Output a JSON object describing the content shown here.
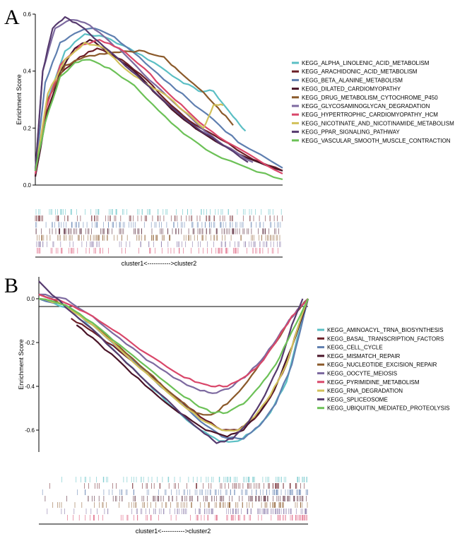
{
  "figure": {
    "panel_a_letter": "A",
    "panel_b_letter": "B"
  },
  "chart_data": [
    {
      "type": "line",
      "panel": "A",
      "ylabel": "Enrichment Score",
      "xlabel": "cluster1<----------->cluster2",
      "ylim": [
        0.0,
        0.6
      ],
      "yticks": [
        "0.0",
        "0.2",
        "0.4",
        "0.6"
      ],
      "xlim": [
        0,
        100
      ],
      "legend_position": "right",
      "series": [
        {
          "name": "KEGG_ALPHA_LINOLENIC_ACID_METABOLISM",
          "color": "#5bbfc4",
          "x": [
            0,
            5,
            12,
            20,
            28,
            38,
            48,
            58,
            66,
            72,
            80,
            85
          ],
          "y": [
            0.05,
            0.3,
            0.47,
            0.53,
            0.52,
            0.48,
            0.43,
            0.37,
            0.33,
            0.33,
            0.24,
            0.19
          ]
        },
        {
          "name": "KEGG_ARACHIDONIC_ACID_METABOLISM",
          "color": "#6b1f27",
          "x": [
            0,
            4,
            10,
            18,
            25,
            35,
            45,
            55,
            65,
            75,
            88,
            100
          ],
          "y": [
            0.03,
            0.24,
            0.39,
            0.45,
            0.48,
            0.44,
            0.37,
            0.28,
            0.21,
            0.16,
            0.09,
            0.05
          ]
        },
        {
          "name": "KEGG_BETA_ALANINE_METABOLISM",
          "color": "#5f7fb0",
          "x": [
            0,
            4,
            10,
            18,
            24,
            32,
            42,
            52,
            62,
            72,
            82,
            100
          ],
          "y": [
            0.05,
            0.36,
            0.5,
            0.54,
            0.55,
            0.52,
            0.45,
            0.37,
            0.3,
            0.23,
            0.15,
            0.06
          ]
        },
        {
          "name": "KEGG_DILATED_CARDIOMYOPATHY",
          "color": "#4a1428",
          "x": [
            0,
            4,
            10,
            16,
            22,
            30,
            40,
            50,
            60,
            70,
            82,
            100
          ],
          "y": [
            0.03,
            0.22,
            0.4,
            0.48,
            0.51,
            0.47,
            0.4,
            0.31,
            0.23,
            0.17,
            0.11,
            0.05
          ]
        },
        {
          "name": "KEGG_DRUG_METABOLISM_CYTOCHROME_P450",
          "color": "#8b5a2b",
          "x": [
            0,
            5,
            12,
            20,
            28,
            36,
            44,
            52,
            58,
            66,
            74,
            80
          ],
          "y": [
            0.05,
            0.3,
            0.42,
            0.45,
            0.46,
            0.47,
            0.47,
            0.45,
            0.4,
            0.34,
            0.27,
            0.21
          ]
        },
        {
          "name": "KEGG_GLYCOSAMINOGLYCAN_DEGRADATION",
          "color": "#7d6aa0",
          "x": [
            0,
            3,
            8,
            14,
            20,
            28,
            36,
            46,
            56,
            66,
            76,
            88
          ],
          "y": [
            0.05,
            0.4,
            0.55,
            0.58,
            0.57,
            0.52,
            0.46,
            0.37,
            0.29,
            0.21,
            0.14,
            0.08
          ]
        },
        {
          "name": "KEGG_HYPERTROPHIC_CARDIOMYOPATHY_HCM",
          "color": "#d9476a",
          "x": [
            0,
            4,
            10,
            18,
            26,
            34,
            44,
            54,
            64,
            74,
            86,
            100
          ],
          "y": [
            0.04,
            0.26,
            0.42,
            0.49,
            0.51,
            0.48,
            0.41,
            0.32,
            0.24,
            0.17,
            0.11,
            0.04
          ]
        },
        {
          "name": "KEGG_NICOTINATE_AND_NICOTINAMIDE_METABOLISM",
          "color": "#d2c15a",
          "x": [
            0,
            5,
            12,
            20,
            28,
            36,
            44,
            52,
            60,
            68,
            72,
            76
          ],
          "y": [
            0.05,
            0.32,
            0.44,
            0.5,
            0.48,
            0.41,
            0.36,
            0.32,
            0.26,
            0.2,
            0.28,
            0.28
          ]
        },
        {
          "name": "KEGG_PPAR_SIGNALING_PATHWAY",
          "color": "#563a6e",
          "x": [
            0,
            3,
            7,
            12,
            18,
            26,
            34,
            44,
            54,
            64,
            74,
            86
          ],
          "y": [
            0.05,
            0.4,
            0.55,
            0.59,
            0.56,
            0.5,
            0.44,
            0.36,
            0.28,
            0.21,
            0.15,
            0.08
          ]
        },
        {
          "name": "KEGG_VASCULAR_SMOOTH_MUSCLE_CONTRACTION",
          "color": "#6cc157",
          "x": [
            0,
            4,
            10,
            16,
            22,
            30,
            40,
            50,
            60,
            72,
            86,
            100
          ],
          "y": [
            0.05,
            0.22,
            0.38,
            0.43,
            0.44,
            0.41,
            0.35,
            0.26,
            0.18,
            0.11,
            0.06,
            0.02
          ]
        }
      ]
    },
    {
      "type": "line",
      "panel": "B",
      "ylabel": "Enrichment Score",
      "xlabel": "cluster1<----------->cluster2",
      "ylim": [
        -0.7,
        0.1
      ],
      "yticks": [
        "-0.6",
        "-0.4",
        "-0.2",
        "0.0"
      ],
      "xlim": [
        0,
        100
      ],
      "legend_position": "right",
      "series": [
        {
          "name": "KEGG_AMINOACYL_TRNA_BIOSYNTHESIS",
          "color": "#5bbfc4",
          "x": [
            0,
            10,
            20,
            30,
            40,
            50,
            60,
            67,
            74,
            80,
            86,
            92,
            96,
            100
          ],
          "y": [
            0.0,
            -0.04,
            -0.14,
            -0.26,
            -0.38,
            -0.5,
            -0.6,
            -0.65,
            -0.65,
            -0.6,
            -0.52,
            -0.38,
            -0.18,
            0.0
          ]
        },
        {
          "name": "KEGG_BASAL_TRANSCRIPTION_FACTORS",
          "color": "#6b1f27",
          "x": [
            12,
            20,
            30,
            40,
            50,
            60,
            68,
            74,
            80,
            86,
            92,
            96,
            100
          ],
          "y": [
            -0.09,
            -0.15,
            -0.24,
            -0.34,
            -0.44,
            -0.54,
            -0.6,
            -0.6,
            -0.55,
            -0.45,
            -0.3,
            -0.14,
            0.0
          ]
        },
        {
          "name": "KEGG_CELL_CYCLE",
          "color": "#5f7fb0",
          "x": [
            0,
            10,
            20,
            30,
            40,
            50,
            60,
            68,
            76,
            82,
            88,
            94,
            100
          ],
          "y": [
            0.0,
            -0.03,
            -0.12,
            -0.23,
            -0.34,
            -0.45,
            -0.56,
            -0.63,
            -0.64,
            -0.58,
            -0.48,
            -0.3,
            0.0
          ]
        },
        {
          "name": "KEGG_MISMATCH_REPAIR",
          "color": "#4a1428",
          "x": [
            14,
            22,
            32,
            42,
            52,
            62,
            70,
            76,
            82,
            88,
            94,
            100
          ],
          "y": [
            -0.12,
            -0.2,
            -0.31,
            -0.42,
            -0.52,
            -0.6,
            -0.63,
            -0.6,
            -0.52,
            -0.4,
            -0.22,
            0.0
          ]
        },
        {
          "name": "KEGG_NUCLEOTIDE_EXCISION_REPAIR",
          "color": "#8b5a2b",
          "x": [
            0,
            10,
            20,
            30,
            40,
            50,
            58,
            64,
            70,
            76,
            82,
            88,
            94,
            100
          ],
          "y": [
            0.02,
            -0.03,
            -0.12,
            -0.22,
            -0.33,
            -0.44,
            -0.52,
            -0.53,
            -0.48,
            -0.4,
            -0.3,
            -0.2,
            -0.08,
            0.0
          ]
        },
        {
          "name": "KEGG_OOCYTE_MEIOSIS",
          "color": "#7d6aa0",
          "x": [
            0,
            10,
            20,
            30,
            40,
            50,
            60,
            66,
            72,
            78,
            84,
            90,
            96,
            100
          ],
          "y": [
            0.02,
            0.0,
            -0.08,
            -0.18,
            -0.28,
            -0.36,
            -0.42,
            -0.43,
            -0.4,
            -0.34,
            -0.26,
            -0.15,
            -0.05,
            0.0
          ]
        },
        {
          "name": "KEGG_PYRIMIDINE_METABOLISM",
          "color": "#d9476a",
          "x": [
            0,
            10,
            20,
            30,
            40,
            50,
            58,
            64,
            70,
            76,
            82,
            88,
            94,
            100
          ],
          "y": [
            0.02,
            -0.02,
            -0.08,
            -0.16,
            -0.25,
            -0.33,
            -0.38,
            -0.4,
            -0.4,
            -0.36,
            -0.3,
            -0.2,
            -0.08,
            0.0
          ]
        },
        {
          "name": "KEGG_RNA_DEGRADATION",
          "color": "#d2c15a",
          "x": [
            0,
            10,
            20,
            30,
            40,
            50,
            60,
            68,
            74,
            80,
            86,
            92,
            96,
            100
          ],
          "y": [
            0.0,
            -0.03,
            -0.12,
            -0.23,
            -0.34,
            -0.45,
            -0.55,
            -0.6,
            -0.6,
            -0.54,
            -0.44,
            -0.3,
            -0.14,
            0.0
          ]
        },
        {
          "name": "KEGG_SPLICEOSOME",
          "color": "#563a6e",
          "x": [
            0,
            10,
            20,
            30,
            40,
            50,
            60,
            66,
            72,
            78,
            84,
            90,
            94,
            98
          ],
          "y": [
            0.08,
            -0.04,
            -0.14,
            -0.26,
            -0.38,
            -0.49,
            -0.6,
            -0.66,
            -0.64,
            -0.56,
            -0.44,
            -0.28,
            -0.12,
            0.0
          ]
        },
        {
          "name": "KEGG_UBIQUITIN_MEDIATED_PROTEOLYSIS",
          "color": "#6cc157",
          "x": [
            0,
            10,
            20,
            30,
            40,
            50,
            58,
            64,
            70,
            76,
            82,
            88,
            94,
            100
          ],
          "y": [
            0.0,
            -0.03,
            -0.11,
            -0.21,
            -0.31,
            -0.41,
            -0.48,
            -0.52,
            -0.52,
            -0.48,
            -0.4,
            -0.3,
            -0.15,
            0.0
          ]
        }
      ]
    }
  ]
}
